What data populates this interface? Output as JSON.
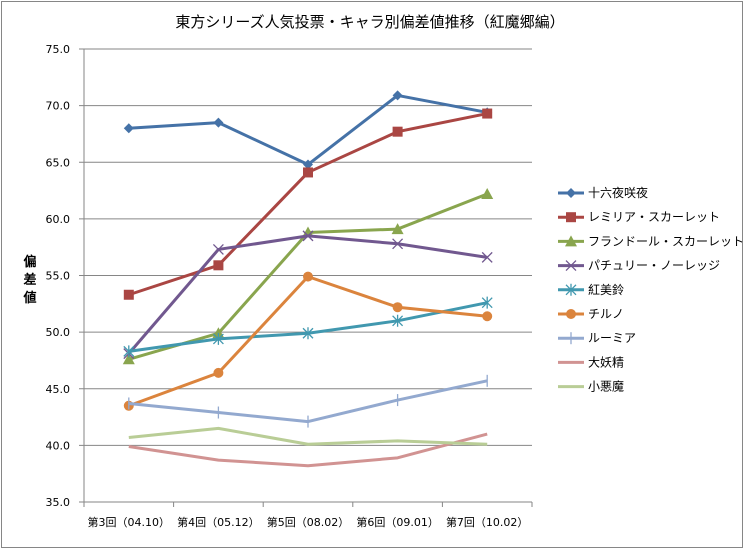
{
  "chart_data": {
    "type": "line",
    "title": "東方シリーズ人気投票・キャラ別偏差値推移（紅魔郷編）",
    "xlabel": "",
    "ylabel": "偏差値",
    "ylim": [
      35.0,
      75.0
    ],
    "ytick_step": 5.0,
    "yticks": [
      "75.0",
      "70.0",
      "65.0",
      "60.0",
      "55.0",
      "50.0",
      "45.0",
      "40.0",
      "35.0"
    ],
    "grid": true,
    "legend": "right",
    "categories": [
      "第3回（04.10）",
      "第4回（05.12）",
      "第5回（08.02）",
      "第6回（09.01）",
      "第7回（10.02）"
    ],
    "series": [
      {
        "name": "十六夜咲夜",
        "color": "#4572A7",
        "marker": "diamond",
        "values": [
          68.0,
          68.5,
          64.8,
          70.9,
          69.4
        ]
      },
      {
        "name": "レミリア・スカーレット",
        "color": "#AA4643",
        "marker": "square",
        "values": [
          53.3,
          55.9,
          64.1,
          67.7,
          69.3
        ]
      },
      {
        "name": "フランドール・スカーレット",
        "color": "#89A54E",
        "marker": "triangle",
        "values": [
          47.6,
          49.9,
          58.8,
          59.1,
          62.2
        ]
      },
      {
        "name": "パチュリー・ノーレッジ",
        "color": "#71588F",
        "marker": "x",
        "values": [
          48.1,
          57.3,
          58.5,
          57.8,
          56.6
        ]
      },
      {
        "name": "紅美鈴",
        "color": "#4198AF",
        "marker": "star",
        "values": [
          48.3,
          49.4,
          49.9,
          51.0,
          52.6
        ]
      },
      {
        "name": "チルノ",
        "color": "#DB843D",
        "marker": "circle",
        "values": [
          43.5,
          46.4,
          54.9,
          52.2,
          51.4
        ]
      },
      {
        "name": "ルーミア",
        "color": "#93A9CF",
        "marker": "plus",
        "values": [
          43.7,
          42.9,
          42.1,
          44.0,
          45.7
        ]
      },
      {
        "name": "大妖精",
        "color": "#D19392",
        "marker": "none",
        "values": [
          39.9,
          38.7,
          38.2,
          38.9,
          41.0
        ]
      },
      {
        "name": "小悪魔",
        "color": "#B9CD96",
        "marker": "none",
        "values": [
          40.7,
          41.5,
          40.1,
          40.4,
          40.1
        ]
      }
    ]
  }
}
